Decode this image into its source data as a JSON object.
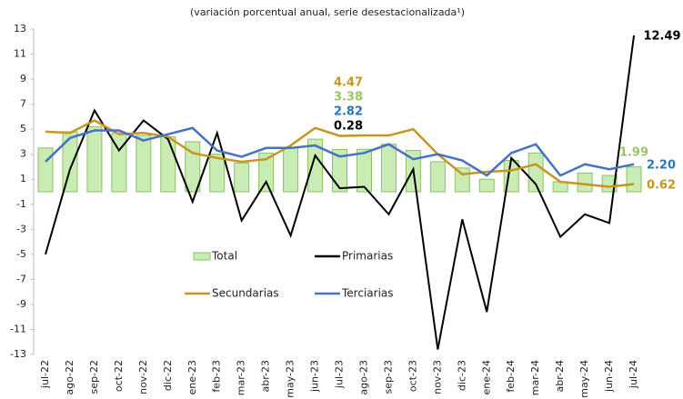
{
  "chart_data": {
    "type": "bar-line",
    "subtitle": "(variación porcentual anual, serie desestacionalizada¹)",
    "categories": [
      "jul-22",
      "ago-22",
      "sep-22",
      "oct-22",
      "nov-22",
      "dic-22",
      "ene-23",
      "feb-23",
      "mar-23",
      "abr-23",
      "may-23",
      "jun-23",
      "jul-23",
      "ago-23",
      "sep-23",
      "oct-23",
      "nov-23",
      "dic-23",
      "ene-24",
      "feb-24",
      "mar-24",
      "abr-24",
      "may-24",
      "jun-24",
      "jul-24"
    ],
    "series": [
      {
        "name": "Total",
        "type": "bar",
        "color": "#c9ebb4",
        "edge": "#8cc063",
        "label_color": "#9bc46a",
        "values": [
          3.5,
          4.8,
          5.2,
          4.7,
          4.5,
          4.4,
          4.0,
          3.0,
          2.3,
          3.1,
          3.5,
          4.2,
          3.38,
          3.4,
          3.8,
          3.3,
          2.4,
          1.9,
          1.0,
          2.5,
          3.1,
          0.8,
          1.5,
          1.3,
          1.99
        ],
        "value_labels": [
          null,
          null,
          null,
          null,
          null,
          null,
          null,
          null,
          null,
          null,
          null,
          null,
          "3.38",
          null,
          null,
          null,
          null,
          null,
          null,
          null,
          null,
          null,
          null,
          null,
          "1.99"
        ]
      },
      {
        "name": "Primarias",
        "type": "line",
        "color": "#000000",
        "label_color": "#000000",
        "values": [
          -5.0,
          1.8,
          6.5,
          3.3,
          5.7,
          4.2,
          -0.8,
          4.7,
          -2.3,
          0.8,
          -3.5,
          2.9,
          0.28,
          0.4,
          -1.8,
          1.8,
          -12.6,
          -2.2,
          -9.6,
          2.7,
          0.6,
          -3.6,
          -1.8,
          -2.5,
          12.49
        ],
        "value_labels": [
          null,
          null,
          null,
          null,
          null,
          null,
          null,
          null,
          null,
          null,
          null,
          null,
          "0.28",
          null,
          null,
          null,
          null,
          null,
          null,
          null,
          null,
          null,
          null,
          null,
          "12.49"
        ]
      },
      {
        "name": "Secundarias",
        "type": "line",
        "color": "#c8961e",
        "label_color": "#c8961e",
        "values": [
          4.8,
          4.7,
          5.7,
          4.6,
          4.7,
          4.4,
          3.1,
          2.7,
          2.4,
          2.6,
          3.7,
          5.1,
          4.47,
          4.5,
          4.5,
          5.0,
          3.0,
          1.4,
          1.6,
          1.7,
          2.2,
          0.8,
          0.6,
          0.4,
          0.62
        ],
        "value_labels": [
          null,
          null,
          null,
          null,
          null,
          null,
          null,
          null,
          null,
          null,
          null,
          null,
          "4.47",
          null,
          null,
          null,
          null,
          null,
          null,
          null,
          null,
          null,
          null,
          null,
          "0.62"
        ]
      },
      {
        "name": "Terciarias",
        "type": "line",
        "color": "#4472c4",
        "label_color": "#2e75b6",
        "values": [
          2.4,
          4.3,
          4.9,
          4.9,
          4.1,
          4.6,
          5.1,
          3.3,
          2.8,
          3.5,
          3.5,
          3.7,
          2.82,
          3.1,
          3.8,
          2.6,
          3.0,
          2.5,
          1.3,
          3.1,
          3.8,
          1.3,
          2.2,
          1.8,
          2.2
        ],
        "value_labels": [
          null,
          null,
          null,
          null,
          null,
          null,
          null,
          null,
          null,
          null,
          null,
          null,
          "2.82",
          null,
          null,
          null,
          null,
          null,
          null,
          null,
          null,
          null,
          null,
          null,
          "2.20"
        ]
      }
    ],
    "ylim": [
      -13,
      13
    ],
    "yticks": [
      -13,
      -11,
      -9,
      -7,
      -5,
      -3,
      -1,
      1,
      3,
      5,
      7,
      9,
      11,
      13
    ]
  }
}
